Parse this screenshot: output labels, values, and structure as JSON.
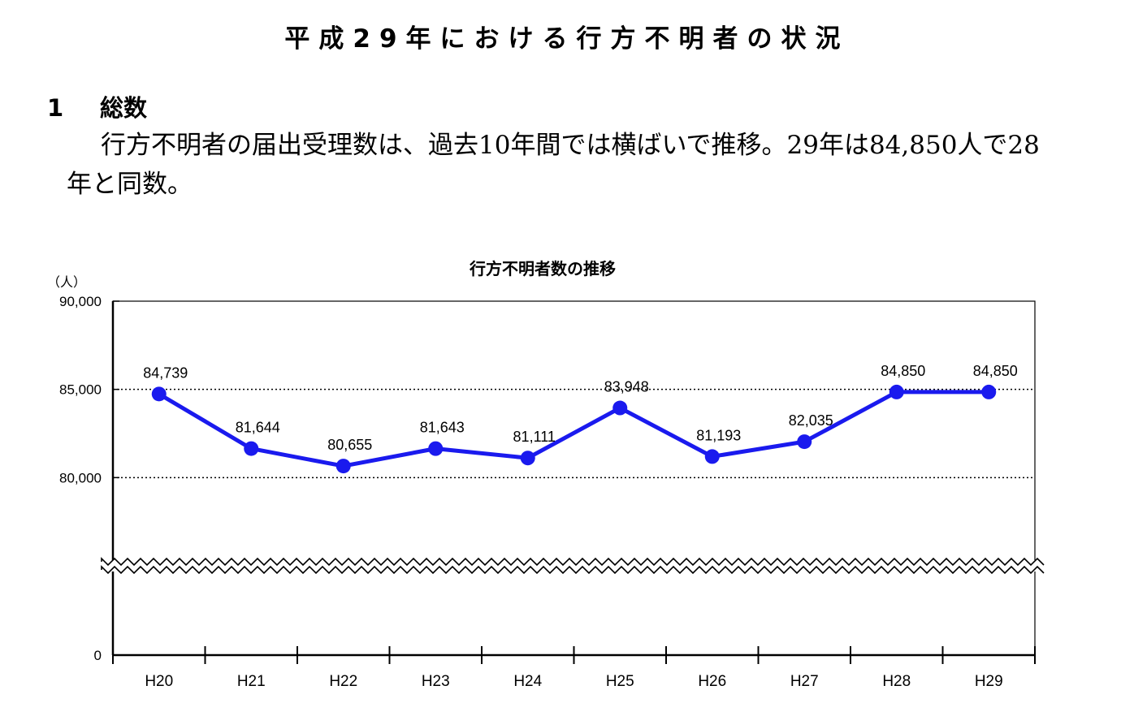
{
  "document": {
    "title": "平成29年における行方不明者の状況",
    "section_number": "1",
    "section_title": "総数",
    "paragraph": "行方不明者の届出受理数は、過去10年間では横ばいで推移。29年は84,850人で28年と同数。"
  },
  "chart_data": {
    "type": "line",
    "title": "行方不明者数の推移",
    "ylabel": "（人）",
    "xlabel": "",
    "categories": [
      "H20",
      "H21",
      "H22",
      "H23",
      "H24",
      "H25",
      "H26",
      "H27",
      "H28",
      "H29"
    ],
    "series": [
      {
        "values": [
          84739,
          81644,
          80655,
          81643,
          81111,
          83948,
          81193,
          82035,
          84850,
          84850
        ],
        "color": "#1a1aee"
      }
    ],
    "data_labels": [
      "84,739",
      "81,644",
      "80,655",
      "81,643",
      "81,111",
      "83,948",
      "81,193",
      "82,035",
      "84,850",
      "84,850"
    ],
    "yticks": [
      0,
      80000,
      85000,
      90000
    ],
    "ytick_labels": [
      "0",
      "80,000",
      "85,000",
      "90,000"
    ],
    "ylim": [
      75000,
      90000
    ],
    "axis_break": true,
    "gridlines": "dotted at 80,000 and 85,000",
    "legend": "none"
  }
}
